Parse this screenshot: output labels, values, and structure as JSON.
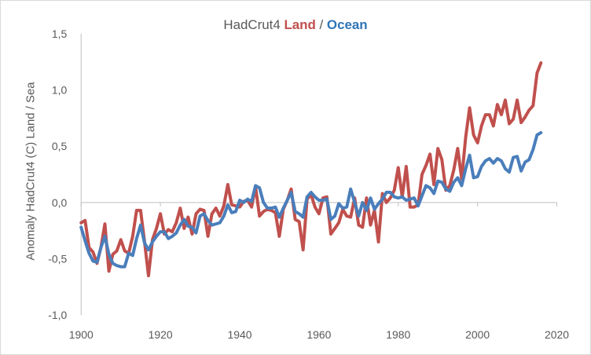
{
  "chart_data": {
    "type": "line",
    "title": {
      "prefix": "HadCrut4 ",
      "land_word": "Land",
      "separator": " / ",
      "ocean_word": "Ocean"
    },
    "xlabel": "",
    "ylabel": "Anomaly HadCrut4 (C) Land / Sea",
    "xlim": [
      1900,
      2020
    ],
    "ylim": [
      -1.0,
      1.5
    ],
    "xticks": [
      1900,
      1920,
      1940,
      1960,
      1980,
      2000,
      2020
    ],
    "xtick_labels": [
      "1900",
      "1920",
      "1940",
      "1960",
      "1980",
      "2000",
      "2020"
    ],
    "yticks": [
      -1.0,
      -0.5,
      0.0,
      0.5,
      1.0,
      1.5
    ],
    "ytick_labels": [
      "-1,0",
      "-0,5",
      "0,0",
      "0,5",
      "1,0",
      "1,5"
    ],
    "grid": false,
    "legend": "none",
    "series": [
      {
        "name": "Land",
        "color": "#c0504d",
        "x": [
          1900,
          1901,
          1902,
          1903,
          1904,
          1905,
          1906,
          1907,
          1908,
          1909,
          1910,
          1911,
          1912,
          1913,
          1914,
          1915,
          1916,
          1917,
          1918,
          1919,
          1920,
          1921,
          1922,
          1923,
          1924,
          1925,
          1926,
          1927,
          1928,
          1929,
          1930,
          1931,
          1932,
          1933,
          1934,
          1935,
          1936,
          1937,
          1938,
          1939,
          1940,
          1941,
          1942,
          1943,
          1944,
          1945,
          1946,
          1947,
          1948,
          1949,
          1950,
          1951,
          1952,
          1953,
          1954,
          1955,
          1956,
          1957,
          1958,
          1959,
          1960,
          1961,
          1962,
          1963,
          1964,
          1965,
          1966,
          1967,
          1968,
          1969,
          1970,
          1971,
          1972,
          1973,
          1974,
          1975,
          1976,
          1977,
          1978,
          1979,
          1980,
          1981,
          1982,
          1983,
          1984,
          1985,
          1986,
          1987,
          1988,
          1989,
          1990,
          1991,
          1992,
          1993,
          1994,
          1995,
          1996,
          1997,
          1998,
          1999,
          2000,
          2001,
          2002,
          2003,
          2004,
          2005,
          2006,
          2007,
          2008,
          2009,
          2010,
          2011,
          2012,
          2013,
          2014,
          2015,
          2016
        ],
        "values": [
          -0.18,
          -0.16,
          -0.4,
          -0.44,
          -0.54,
          -0.4,
          -0.19,
          -0.61,
          -0.46,
          -0.43,
          -0.33,
          -0.43,
          -0.45,
          -0.3,
          -0.07,
          -0.07,
          -0.35,
          -0.65,
          -0.33,
          -0.23,
          -0.1,
          -0.28,
          -0.24,
          -0.26,
          -0.18,
          -0.05,
          -0.23,
          -0.13,
          -0.28,
          -0.1,
          -0.06,
          -0.07,
          -0.3,
          -0.1,
          -0.05,
          -0.12,
          -0.03,
          0.16,
          -0.02,
          -0.03,
          -0.04,
          0.01,
          0.02,
          -0.04,
          0.14,
          -0.12,
          -0.08,
          -0.06,
          -0.07,
          -0.09,
          -0.3,
          -0.06,
          0.02,
          0.12,
          -0.15,
          -0.17,
          -0.42,
          0.03,
          0.07,
          -0.04,
          -0.1,
          0.04,
          0.05,
          -0.28,
          -0.23,
          -0.18,
          -0.06,
          -0.12,
          -0.13,
          0.04,
          -0.2,
          -0.22,
          0.04,
          -0.2,
          -0.07,
          -0.35,
          0.08,
          0.0,
          0.04,
          0.11,
          0.31,
          0.05,
          0.32,
          -0.04,
          -0.04,
          -0.02,
          0.25,
          0.33,
          0.43,
          0.16,
          0.48,
          0.38,
          0.11,
          0.15,
          0.29,
          0.48,
          0.21,
          0.58,
          0.84,
          0.6,
          0.53,
          0.68,
          0.78,
          0.78,
          0.68,
          0.87,
          0.78,
          0.91,
          0.7,
          0.74,
          0.91,
          0.71,
          0.76,
          0.82,
          0.86,
          1.15,
          1.24
        ]
      },
      {
        "name": "Ocean",
        "color": "#4a7ebb",
        "x": [
          1900,
          1901,
          1902,
          1903,
          1904,
          1905,
          1906,
          1907,
          1908,
          1909,
          1910,
          1911,
          1912,
          1913,
          1914,
          1915,
          1916,
          1917,
          1918,
          1919,
          1920,
          1921,
          1922,
          1923,
          1924,
          1925,
          1926,
          1927,
          1928,
          1929,
          1930,
          1931,
          1932,
          1933,
          1934,
          1935,
          1936,
          1937,
          1938,
          1939,
          1940,
          1941,
          1942,
          1943,
          1944,
          1945,
          1946,
          1947,
          1948,
          1949,
          1950,
          1951,
          1952,
          1953,
          1954,
          1955,
          1956,
          1957,
          1958,
          1959,
          1960,
          1961,
          1962,
          1963,
          1964,
          1965,
          1966,
          1967,
          1968,
          1969,
          1970,
          1971,
          1972,
          1973,
          1974,
          1975,
          1976,
          1977,
          1978,
          1979,
          1980,
          1981,
          1982,
          1983,
          1984,
          1985,
          1986,
          1987,
          1988,
          1989,
          1990,
          1991,
          1992,
          1993,
          1994,
          1995,
          1996,
          1997,
          1998,
          1999,
          2000,
          2001,
          2002,
          2003,
          2004,
          2005,
          2006,
          2007,
          2008,
          2009,
          2010,
          2011,
          2012,
          2013,
          2014,
          2015,
          2016
        ],
        "values": [
          -0.22,
          -0.34,
          -0.45,
          -0.52,
          -0.53,
          -0.4,
          -0.3,
          -0.46,
          -0.54,
          -0.56,
          -0.57,
          -0.57,
          -0.45,
          -0.47,
          -0.32,
          -0.2,
          -0.36,
          -0.42,
          -0.35,
          -0.3,
          -0.26,
          -0.26,
          -0.32,
          -0.3,
          -0.27,
          -0.2,
          -0.15,
          -0.21,
          -0.22,
          -0.27,
          -0.12,
          -0.1,
          -0.16,
          -0.2,
          -0.19,
          -0.18,
          -0.12,
          -0.02,
          -0.09,
          -0.08,
          0.02,
          0.0,
          0.03,
          0.01,
          0.15,
          0.13,
          0.0,
          -0.05,
          -0.05,
          -0.04,
          -0.13,
          -0.05,
          0.02,
          0.09,
          -0.08,
          -0.1,
          -0.13,
          0.05,
          0.09,
          0.05,
          0.02,
          0.02,
          0.03,
          -0.15,
          -0.12,
          -0.01,
          -0.05,
          -0.04,
          0.12,
          0.0,
          -0.12,
          0.0,
          -0.07,
          0.04,
          -0.06,
          -0.01,
          0.03,
          0.09,
          0.09,
          0.05,
          0.04,
          0.05,
          0.02,
          0.03,
          0.04,
          -0.03,
          0.06,
          0.15,
          0.13,
          0.08,
          0.19,
          0.18,
          0.12,
          0.1,
          0.18,
          0.22,
          0.15,
          0.3,
          0.42,
          0.22,
          0.23,
          0.32,
          0.37,
          0.39,
          0.35,
          0.39,
          0.37,
          0.3,
          0.27,
          0.4,
          0.41,
          0.28,
          0.36,
          0.38,
          0.47,
          0.6,
          0.62
        ]
      }
    ]
  }
}
